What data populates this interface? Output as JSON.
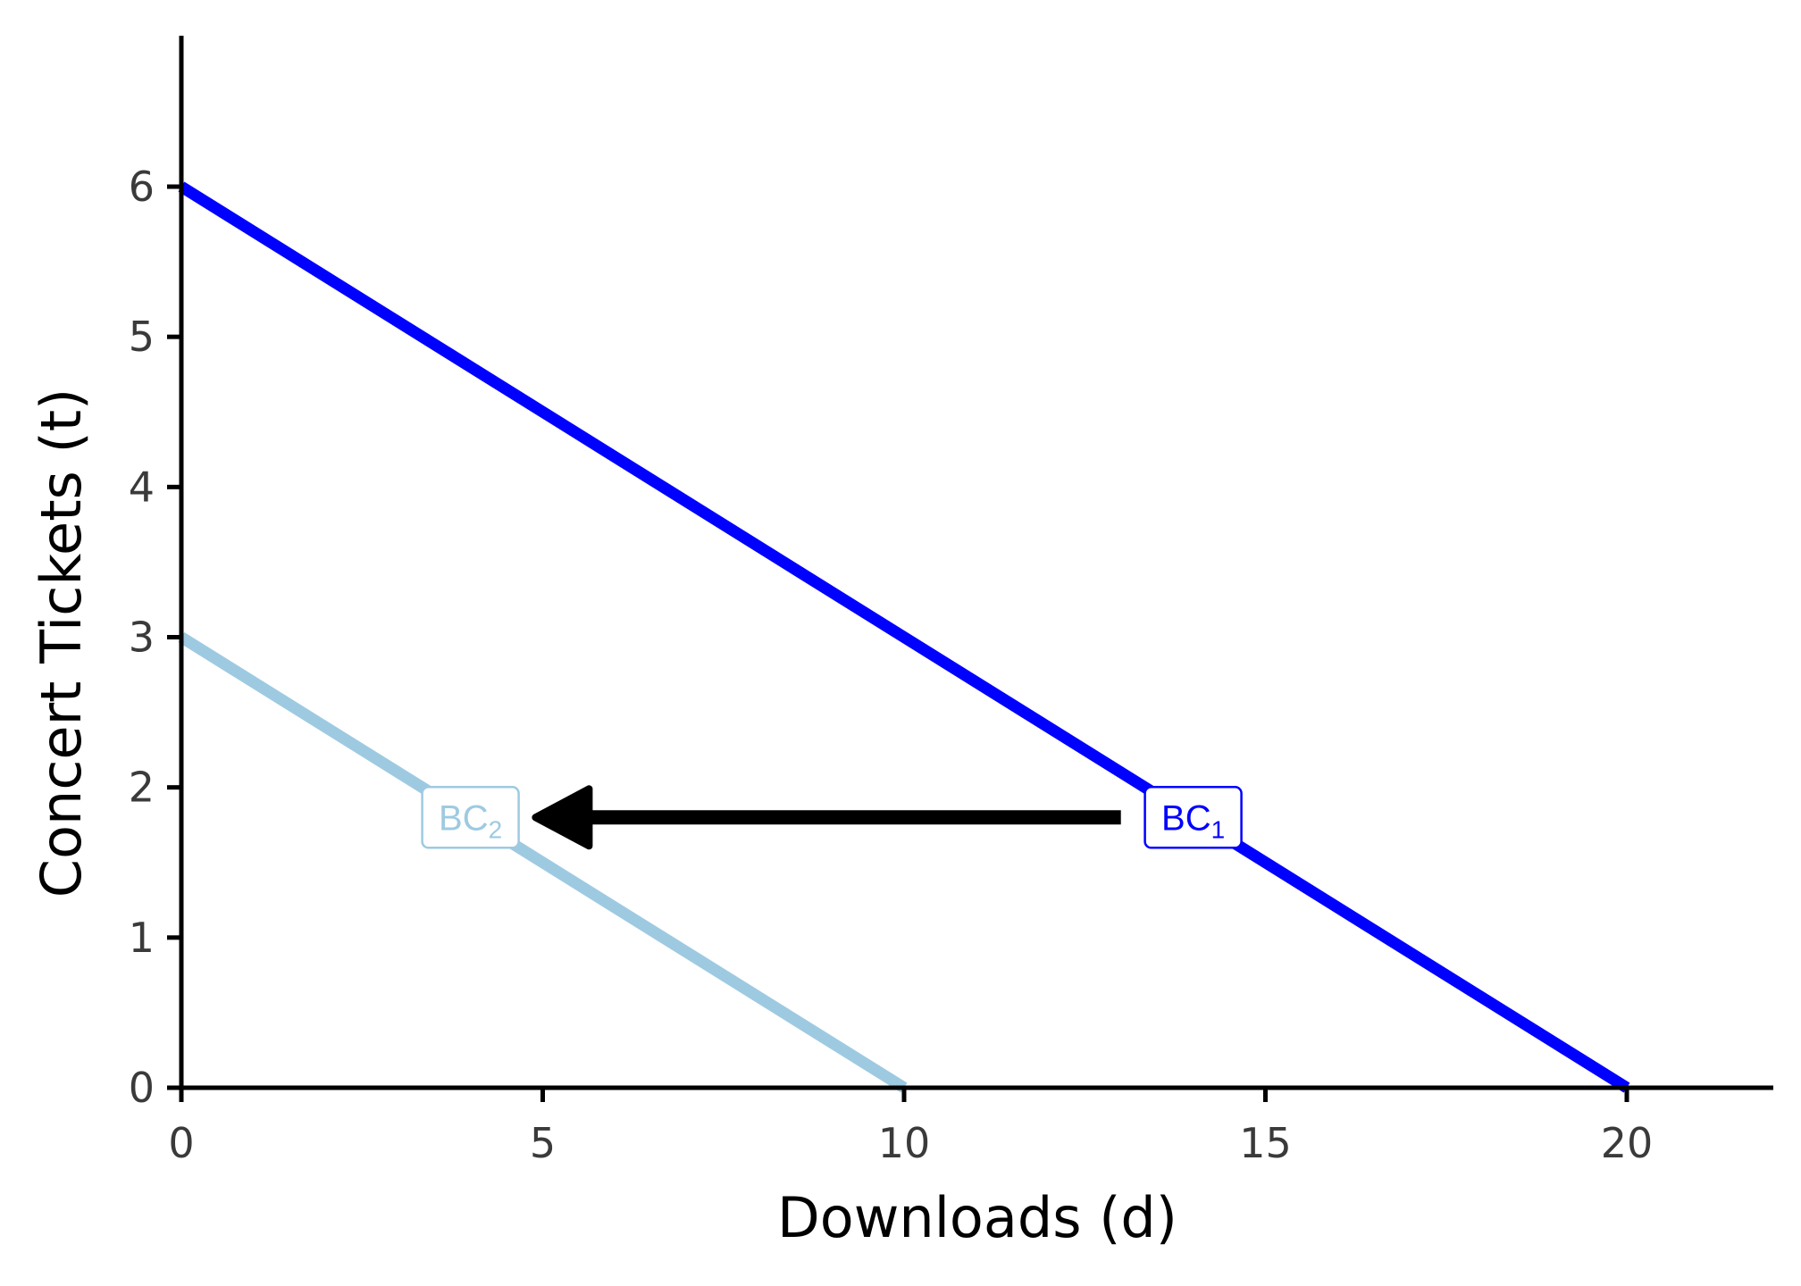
{
  "chart_data": {
    "type": "line",
    "title": "",
    "xlabel": "Downloads (d)",
    "ylabel": "Concert Tickets (t)",
    "xlim": [
      0,
      22
    ],
    "ylim": [
      0,
      7
    ],
    "xticks": [
      0,
      5,
      10,
      15,
      20
    ],
    "yticks": [
      0,
      1,
      2,
      3,
      4,
      5,
      6
    ],
    "grid": false,
    "series": [
      {
        "name": "BC1",
        "color": "#0000ff",
        "x": [
          0,
          20
        ],
        "y": [
          6,
          0
        ]
      },
      {
        "name": "BC2",
        "color": "#9ecae1",
        "x": [
          0,
          10
        ],
        "y": [
          3,
          0
        ]
      }
    ],
    "annotations": [
      {
        "type": "label",
        "series": "BC1",
        "text": "BC",
        "subscript": "1",
        "x": 14,
        "y": 1.8,
        "color": "#0000ff"
      },
      {
        "type": "label",
        "series": "BC2",
        "text": "BC",
        "subscript": "2",
        "x": 4,
        "y": 1.8,
        "color": "#9ecae1"
      },
      {
        "type": "arrow",
        "from": {
          "x": 13,
          "y": 1.8
        },
        "to": {
          "x": 4.9,
          "y": 1.8
        },
        "color": "#000000"
      }
    ]
  }
}
